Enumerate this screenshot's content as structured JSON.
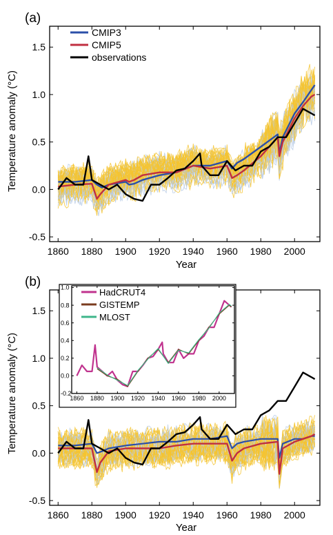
{
  "chart_data": [
    {
      "type": "line",
      "panel_label": "(a)",
      "xlabel": "Year",
      "ylabel": "Temperature anomaly (°C)",
      "xlim": [
        1855,
        2015
      ],
      "ylim": [
        -0.55,
        1.72
      ],
      "xticks": [
        1860,
        1880,
        1900,
        1920,
        1940,
        1960,
        1980,
        2000
      ],
      "yticks": [
        -0.5,
        0.0,
        0.5,
        1.0,
        1.5
      ],
      "ytick_labels": [
        "-0.5",
        "0.0",
        "0.5",
        "1.0",
        "1.5"
      ],
      "legend_position": "top-left",
      "series": [
        {
          "name": "CMIP3",
          "color": "#2b4fa8",
          "x": [
            1860,
            1870,
            1880,
            1883,
            1886,
            1890,
            1900,
            1902,
            1905,
            1910,
            1920,
            1930,
            1940,
            1950,
            1960,
            1963,
            1966,
            1970,
            1980,
            1990,
            1991,
            1993,
            2000,
            2005,
            2010,
            2012
          ],
          "y": [
            0.08,
            0.08,
            0.1,
            0.05,
            0.02,
            0.05,
            0.08,
            0.05,
            0.06,
            0.1,
            0.15,
            0.18,
            0.25,
            0.25,
            0.3,
            0.22,
            0.28,
            0.32,
            0.45,
            0.58,
            0.38,
            0.55,
            0.8,
            0.92,
            1.05,
            1.1
          ]
        },
        {
          "name": "CMIP5",
          "color": "#c02f40",
          "x": [
            1860,
            1870,
            1880,
            1883,
            1885,
            1890,
            1900,
            1902,
            1905,
            1910,
            1920,
            1930,
            1940,
            1950,
            1960,
            1963,
            1966,
            1970,
            1980,
            1990,
            1991,
            1993,
            2000,
            2005,
            2010,
            2012
          ],
          "y": [
            0.03,
            0.05,
            0.06,
            -0.1,
            -0.05,
            0.05,
            0.1,
            0.08,
            0.1,
            0.15,
            0.18,
            0.18,
            0.25,
            0.22,
            0.25,
            0.12,
            0.15,
            0.2,
            0.35,
            0.55,
            0.35,
            0.5,
            0.75,
            0.88,
            0.98,
            1.0
          ]
        },
        {
          "name": "observations",
          "color": "#000000",
          "x": [
            1860,
            1865,
            1870,
            1875,
            1878,
            1880,
            1885,
            1890,
            1895,
            1900,
            1905,
            1910,
            1915,
            1920,
            1925,
            1930,
            1935,
            1940,
            1944,
            1945,
            1950,
            1955,
            1960,
            1965,
            1970,
            1975,
            1980,
            1985,
            1990,
            1995,
            2000,
            2005,
            2010,
            2012
          ],
          "y": [
            0.0,
            0.12,
            0.05,
            0.05,
            0.35,
            0.1,
            0.05,
            0.0,
            0.05,
            -0.05,
            -0.1,
            -0.12,
            0.05,
            0.05,
            0.12,
            0.2,
            0.22,
            0.3,
            0.38,
            0.25,
            0.15,
            0.15,
            0.3,
            0.2,
            0.25,
            0.25,
            0.4,
            0.45,
            0.55,
            0.55,
            0.7,
            0.85,
            0.8,
            0.78
          ]
        }
      ]
    },
    {
      "type": "line",
      "panel_label": "(b)",
      "xlabel": "Year",
      "ylabel": "Temperature anomaly (°C)",
      "xlim": [
        1855,
        2015
      ],
      "ylim": [
        -0.55,
        1.72
      ],
      "xticks": [
        1860,
        1880,
        1900,
        1920,
        1940,
        1960,
        1980,
        2000
      ],
      "yticks": [
        -0.5,
        0.0,
        0.5,
        1.0,
        1.5
      ],
      "ytick_labels": [
        "-0.5",
        "0.0",
        "0.5",
        "1.0",
        "1.5"
      ],
      "series": [
        {
          "name": "",
          "color": "#2b4fa8",
          "x": [
            1860,
            1870,
            1880,
            1883,
            1886,
            1890,
            1900,
            1910,
            1920,
            1930,
            1940,
            1950,
            1960,
            1963,
            1966,
            1970,
            1980,
            1990,
            1991,
            1993,
            2000,
            2005,
            2010,
            2012
          ],
          "y": [
            0.08,
            0.08,
            0.1,
            0.0,
            0.02,
            0.05,
            0.08,
            0.1,
            0.12,
            0.12,
            0.15,
            0.15,
            0.18,
            0.05,
            0.1,
            0.12,
            0.15,
            0.15,
            -0.05,
            0.1,
            0.15,
            0.15,
            0.18,
            0.18
          ]
        },
        {
          "name": "",
          "color": "#c02f40",
          "x": [
            1860,
            1870,
            1880,
            1883,
            1885,
            1890,
            1900,
            1910,
            1920,
            1930,
            1940,
            1950,
            1960,
            1963,
            1966,
            1970,
            1980,
            1990,
            1991,
            1993,
            2000,
            2005,
            2010,
            2012
          ],
          "y": [
            0.05,
            0.05,
            0.05,
            -0.2,
            -0.1,
            0.02,
            0.05,
            0.05,
            0.05,
            0.08,
            0.1,
            0.1,
            0.1,
            -0.08,
            0.0,
            0.05,
            0.1,
            0.12,
            -0.22,
            0.05,
            0.12,
            0.15,
            0.18,
            0.2
          ]
        },
        {
          "name": "",
          "color": "#000000",
          "x": [
            1860,
            1865,
            1870,
            1875,
            1878,
            1880,
            1885,
            1890,
            1895,
            1900,
            1905,
            1910,
            1915,
            1920,
            1925,
            1930,
            1935,
            1940,
            1944,
            1945,
            1950,
            1955,
            1960,
            1965,
            1970,
            1975,
            1980,
            1985,
            1990,
            1995,
            2000,
            2005,
            2010,
            2012
          ],
          "y": [
            0.0,
            0.12,
            0.05,
            0.05,
            0.35,
            0.1,
            0.05,
            0.0,
            0.05,
            -0.05,
            -0.1,
            -0.12,
            0.05,
            0.05,
            0.12,
            0.2,
            0.22,
            0.3,
            0.38,
            0.25,
            0.15,
            0.15,
            0.3,
            0.2,
            0.25,
            0.25,
            0.4,
            0.45,
            0.55,
            0.55,
            0.7,
            0.85,
            0.8,
            0.78
          ]
        }
      ]
    },
    {
      "type": "line",
      "panel_label": "inset",
      "xlim": [
        1855,
        2015
      ],
      "ylim": [
        -0.2,
        1.02
      ],
      "xticks": [
        1860,
        1880,
        1900,
        1920,
        1940,
        1960,
        1980,
        2000
      ],
      "yticks": [
        -0.2,
        0.0,
        0.2,
        0.4,
        0.6,
        0.8,
        1.0
      ],
      "ytick_labels": [
        "-0.2",
        "0.0",
        "0.2",
        "0.4",
        "0.6",
        "0.8",
        "1.0"
      ],
      "legend_position": "top-left",
      "series": [
        {
          "name": "HadCRUT4",
          "color": "#c0338e",
          "x": [
            1860,
            1865,
            1870,
            1875,
            1878,
            1880,
            1885,
            1890,
            1895,
            1900,
            1905,
            1910,
            1915,
            1920,
            1925,
            1930,
            1935,
            1940,
            1944,
            1945,
            1950,
            1955,
            1960,
            1965,
            1970,
            1975,
            1980,
            1985,
            1990,
            1995,
            2000,
            2005,
            2010,
            2012
          ],
          "y": [
            0.0,
            0.12,
            0.05,
            0.05,
            0.35,
            0.1,
            0.05,
            0.0,
            0.05,
            -0.05,
            -0.1,
            -0.12,
            0.05,
            0.05,
            0.12,
            0.2,
            0.22,
            0.3,
            0.38,
            0.25,
            0.15,
            0.15,
            0.3,
            0.2,
            0.25,
            0.25,
            0.4,
            0.45,
            0.55,
            0.55,
            0.7,
            0.85,
            0.8,
            0.78
          ]
        },
        {
          "name": "GISTEMP",
          "color": "#7a3b1e",
          "x": [
            1880,
            1890,
            1900,
            1910,
            1920,
            1930,
            1940,
            1950,
            1960,
            1970,
            1980,
            1990,
            2000,
            2010,
            2012
          ],
          "y": [
            0.08,
            0.0,
            -0.04,
            -0.12,
            0.05,
            0.2,
            0.3,
            0.15,
            0.3,
            0.25,
            0.4,
            0.55,
            0.7,
            0.8,
            0.78
          ]
        },
        {
          "name": "MLOST",
          "color": "#3db68a",
          "x": [
            1880,
            1890,
            1900,
            1910,
            1920,
            1930,
            1940,
            1950,
            1960,
            1970,
            1980,
            1990,
            2000,
            2010,
            2012
          ],
          "y": [
            0.09,
            0.01,
            -0.05,
            -0.11,
            0.06,
            0.19,
            0.31,
            0.14,
            0.29,
            0.26,
            0.41,
            0.54,
            0.71,
            0.81,
            0.79
          ]
        }
      ]
    }
  ]
}
